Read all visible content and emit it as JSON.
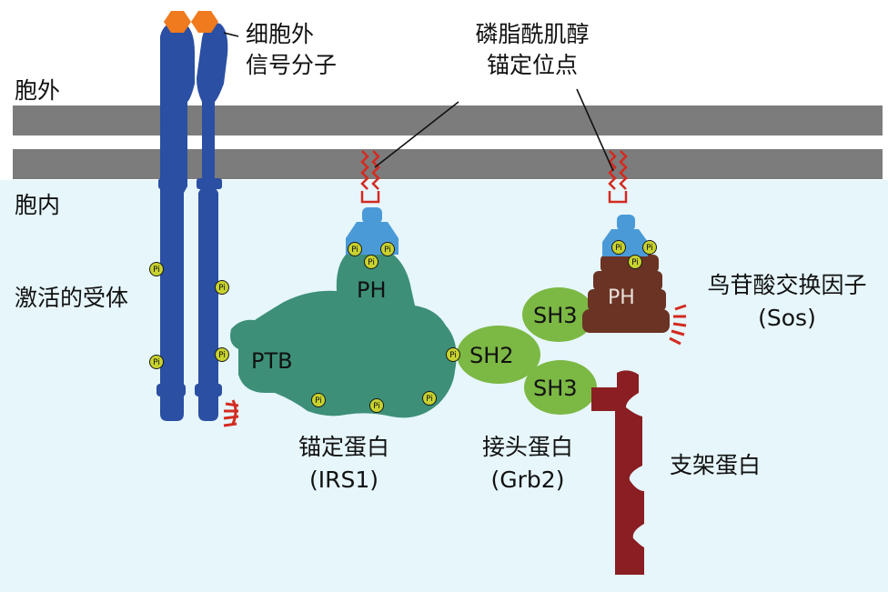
{
  "labels": {
    "outside": "胞外",
    "inside": "胞内",
    "signal_line1": "细胞外",
    "signal_line2": "信号分子",
    "pi_site_line1": "磷脂酰肌醇",
    "pi_site_line2": "锚定位点",
    "activated_receptor": "激活的受体",
    "irs1_line1": "锚定蛋白",
    "irs1_line2": "(IRS1)",
    "grb2_line1": "接头蛋白",
    "grb2_line2": "(Grb2)",
    "sos_line1": "鸟苷酸交换因子",
    "sos_line2": "(Sos)",
    "scaffold": "支架蛋白"
  },
  "domains": {
    "ptb": "PTB",
    "ph_irs": "PH",
    "ph_sos": "PH",
    "sh2": "SH2",
    "sh3_top": "SH3",
    "sh3_bottom": "SH3"
  },
  "phospho_symbol": "Pi",
  "colors": {
    "membrane": "#7a7a7a",
    "cytoplasm": "#e6f6fb",
    "receptor": "#2a4fa3",
    "signal_molecule": "#f07a1e",
    "irs1": "#3d8f78",
    "ph_head": "#4a9ad8",
    "grb2": "#7cb844",
    "sos": "#6b3324",
    "scaffold": "#8a1e22",
    "lipid_anchor": "#d42a20",
    "phospho": "#c8d22e"
  }
}
